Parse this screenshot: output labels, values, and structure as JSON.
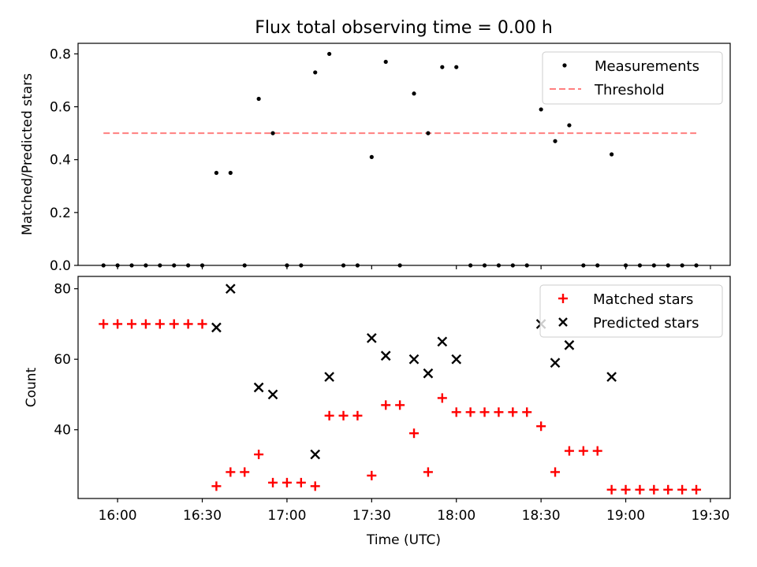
{
  "colors": {
    "measurement": "#000000",
    "threshold": "#ff7f7f",
    "matched": "#ff0000",
    "predicted": "#000000",
    "axis": "#000000",
    "background": "#ffffff"
  },
  "chart_data": [
    {
      "type": "scatter",
      "title": "Flux total observing time = 0.00 h",
      "ylabel": "Matched/Predicted stars",
      "xlim_minutes_from_midnight": [
        946,
        1177
      ],
      "ylim": [
        0,
        0.84
      ],
      "yticks": [
        "0.0",
        "0.2",
        "0.4",
        "0.6",
        "0.8"
      ],
      "legend_position": "top-right",
      "series": [
        {
          "name": "Measurements",
          "marker": "dot",
          "x": [
            "15:55",
            "16:00",
            "16:05",
            "16:10",
            "16:15",
            "16:20",
            "16:25",
            "16:30",
            "16:35",
            "16:40",
            "16:45",
            "16:50",
            "16:55",
            "17:00",
            "17:05",
            "17:10",
            "17:15",
            "17:20",
            "17:25",
            "17:30",
            "17:35",
            "17:40",
            "17:45",
            "17:50",
            "17:55",
            "18:00",
            "18:05",
            "18:10",
            "18:15",
            "18:20",
            "18:25",
            "18:30",
            "18:35",
            "18:40",
            "18:45",
            "18:50",
            "18:55",
            "19:00",
            "19:05",
            "19:10",
            "19:15",
            "19:20",
            "19:25"
          ],
          "y": [
            0,
            0,
            0,
            0,
            0,
            0,
            0,
            0,
            0.35,
            0.35,
            0,
            0.63,
            0.5,
            0,
            0,
            0.73,
            0.8,
            0,
            0,
            0.41,
            0.77,
            0,
            0.65,
            0.5,
            0.75,
            0.75,
            0,
            0,
            0,
            0,
            0,
            0.59,
            0.47,
            0.53,
            0,
            0,
            0.42,
            0,
            0,
            0,
            0,
            0,
            0
          ]
        },
        {
          "name": "Threshold",
          "style": "dashed",
          "x": [
            "15:55",
            "19:25"
          ],
          "y": [
            0.5,
            0.5
          ]
        }
      ]
    },
    {
      "type": "scatter",
      "ylabel": "Count",
      "xlabel": "Time (UTC)",
      "xlim_minutes_from_midnight": [
        946,
        1177
      ],
      "ylim": [
        20.5,
        83.5
      ],
      "yticks": [
        "40",
        "60",
        "80"
      ],
      "xticks": [
        "16:00",
        "16:30",
        "17:00",
        "17:30",
        "18:00",
        "18:30",
        "19:00",
        "19:30"
      ],
      "legend_position": "top-right",
      "series": [
        {
          "name": "Matched stars",
          "marker": "plus",
          "x": [
            "15:55",
            "16:00",
            "16:05",
            "16:10",
            "16:15",
            "16:20",
            "16:25",
            "16:30",
            "16:35",
            "16:40",
            "16:45",
            "16:50",
            "16:55",
            "17:00",
            "17:05",
            "17:10",
            "17:15",
            "17:20",
            "17:25",
            "17:30",
            "17:35",
            "17:40",
            "17:45",
            "17:50",
            "17:55",
            "18:00",
            "18:05",
            "18:10",
            "18:15",
            "18:20",
            "18:25",
            "18:30",
            "18:35",
            "18:40",
            "18:45",
            "18:50",
            "18:55",
            "19:00",
            "19:05",
            "19:10",
            "19:15",
            "19:20",
            "19:25"
          ],
          "y": [
            70,
            70,
            70,
            70,
            70,
            70,
            70,
            70,
            24,
            28,
            28,
            33,
            25,
            25,
            25,
            24,
            44,
            44,
            44,
            27,
            47,
            47,
            39,
            28,
            49,
            45,
            45,
            45,
            45,
            45,
            45,
            41,
            28,
            34,
            34,
            34,
            23,
            23,
            23,
            23,
            23,
            23,
            23
          ]
        },
        {
          "name": "Predicted stars",
          "marker": "x",
          "x": [
            "16:35",
            "16:40",
            "16:50",
            "16:55",
            "17:10",
            "17:15",
            "17:30",
            "17:35",
            "17:45",
            "17:50",
            "17:55",
            "18:00",
            "18:30",
            "18:35",
            "18:40",
            "18:55"
          ],
          "y": [
            69,
            80,
            52,
            50,
            33,
            55,
            66,
            61,
            60,
            56,
            65,
            60,
            70,
            59,
            64,
            55
          ]
        }
      ]
    }
  ]
}
